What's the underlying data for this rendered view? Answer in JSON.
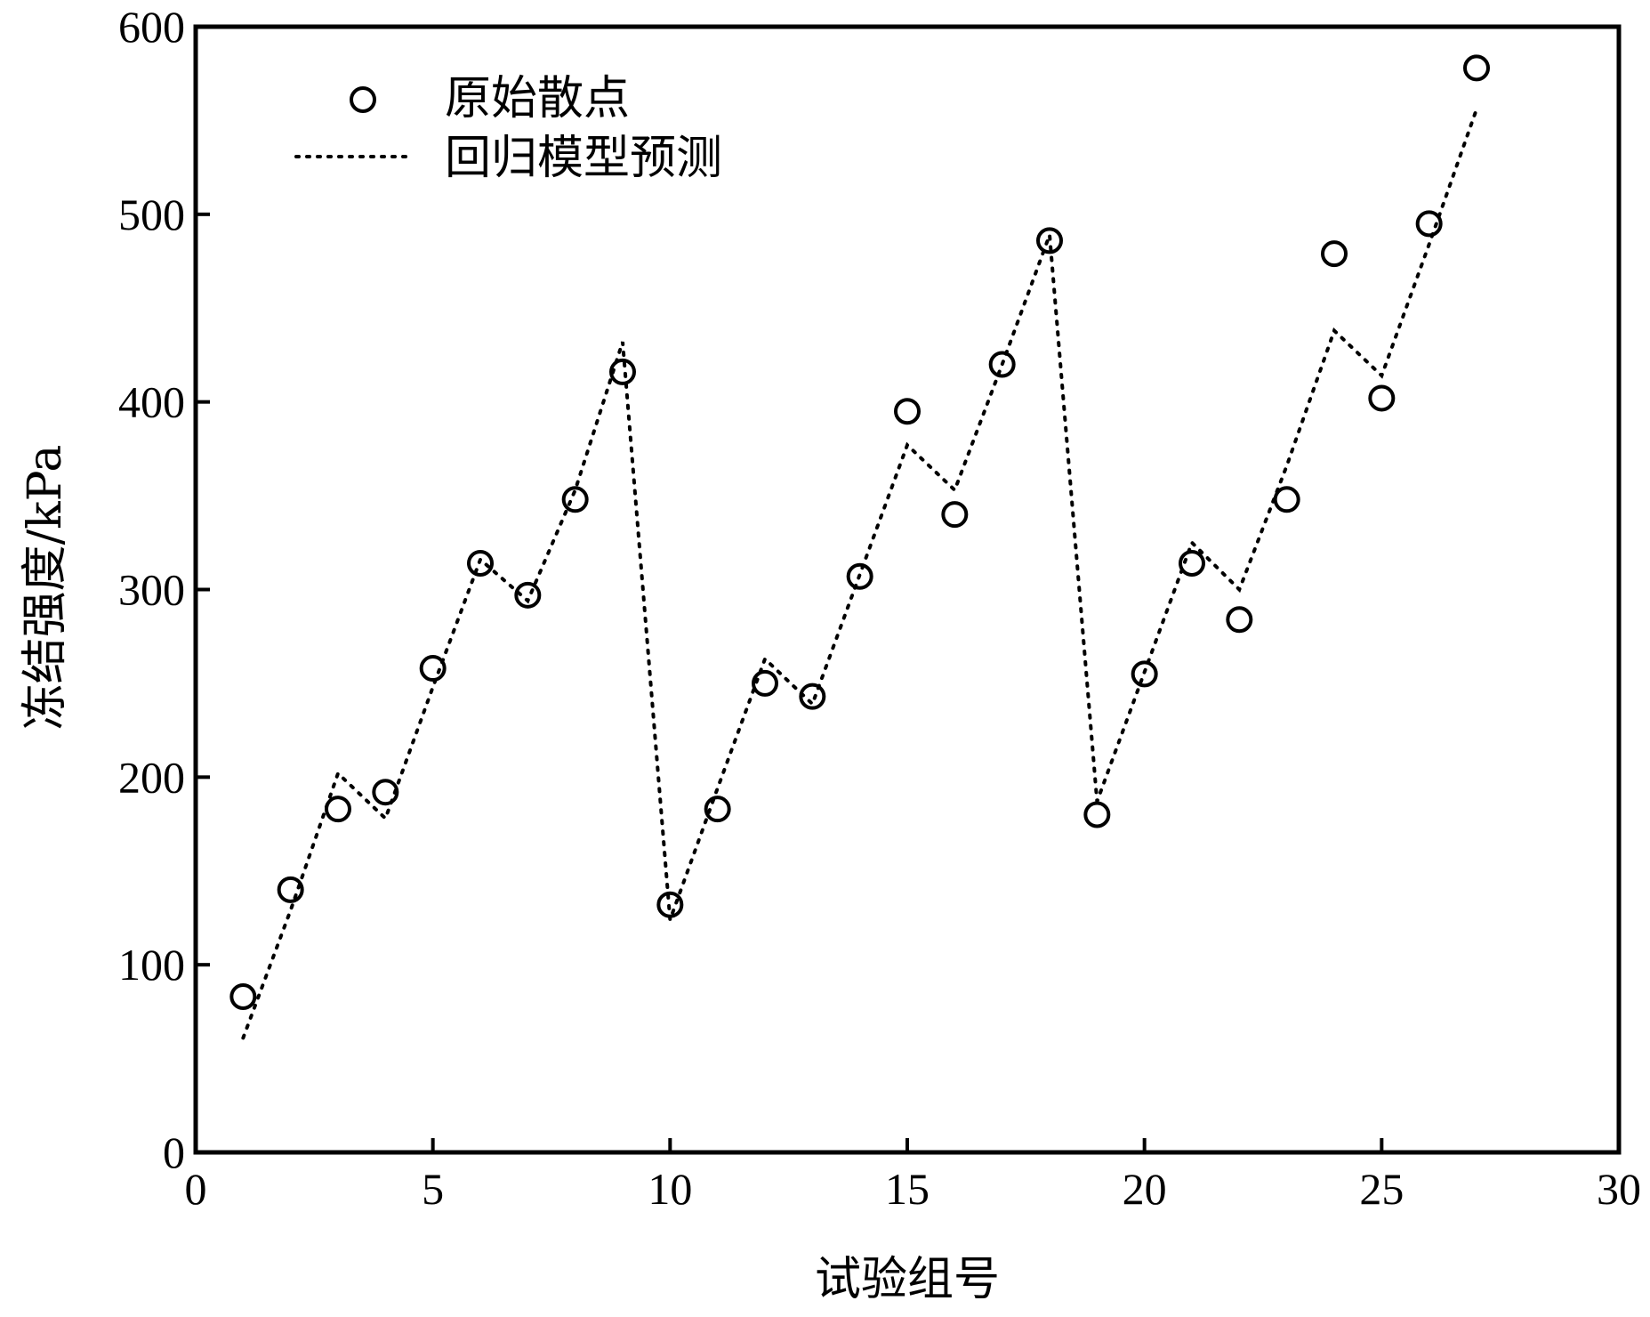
{
  "chart_data": {
    "type": "scatter",
    "xlabel": "试验组号",
    "ylabel": "冻结强度/kPa",
    "xlim": [
      0,
      30
    ],
    "ylim": [
      0,
      600
    ],
    "xticks": [
      "0",
      "5",
      "10",
      "15",
      "20",
      "25",
      "30"
    ],
    "yticks": [
      "0",
      "100",
      "200",
      "300",
      "400",
      "500",
      "600"
    ],
    "grid": false,
    "legend_position": "top-left",
    "series": [
      {
        "name": "原始散点",
        "marker": "circle",
        "x": [
          1,
          2,
          3,
          4,
          5,
          6,
          7,
          8,
          9,
          10,
          11,
          12,
          13,
          14,
          15,
          16,
          17,
          18,
          19,
          20,
          21,
          22,
          23,
          24,
          25,
          26,
          27
        ],
        "y": [
          83,
          140,
          183,
          192,
          258,
          314,
          297,
          348,
          416,
          132,
          183,
          250,
          243,
          307,
          395,
          340,
          420,
          486,
          180,
          255,
          314,
          284,
          348,
          479,
          402,
          495,
          578
        ]
      },
      {
        "name": "回归模型预测",
        "style": "dotted-line",
        "x": [
          1,
          2,
          3,
          4,
          5,
          6,
          7,
          8,
          9,
          10,
          11,
          12,
          13,
          14,
          15,
          16,
          17,
          18,
          19,
          20,
          21,
          22,
          23,
          24,
          25,
          26,
          27
        ],
        "y": [
          61,
          129,
          202,
          178,
          248,
          316,
          294,
          353,
          432,
          124,
          194,
          263,
          239,
          308,
          377,
          353,
          420,
          489,
          187,
          256,
          325,
          300,
          366,
          438,
          414,
          484,
          556
        ]
      }
    ],
    "colors": {
      "marker": "#000000",
      "line": "#000000"
    }
  }
}
